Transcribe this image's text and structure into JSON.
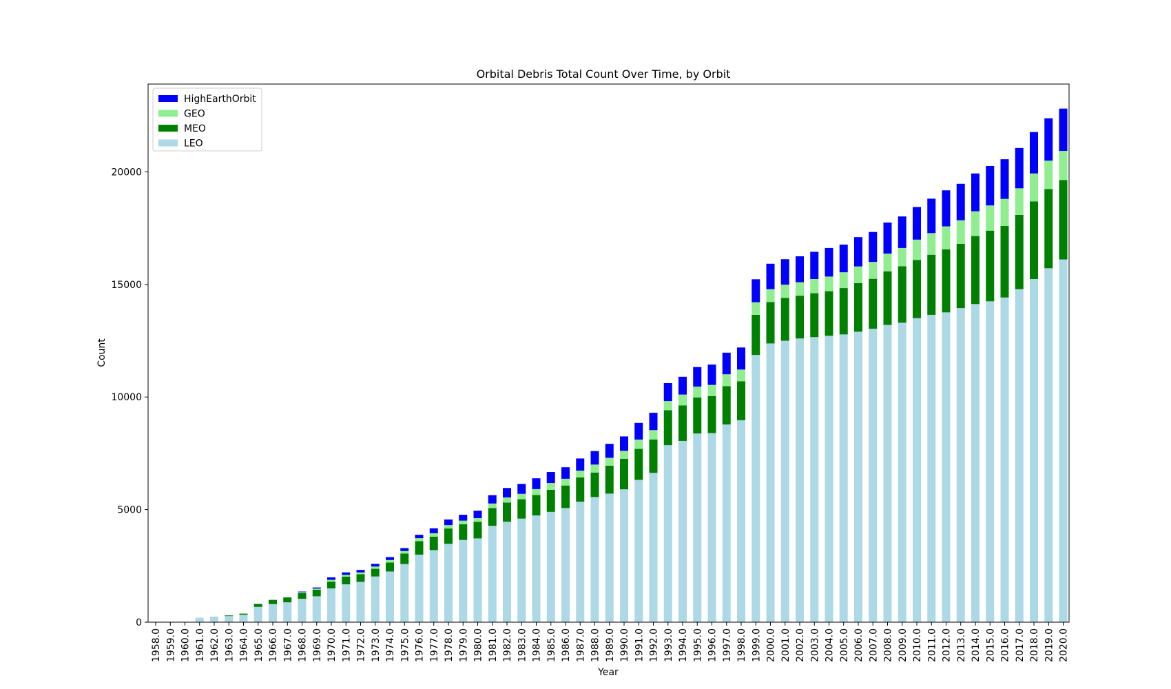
{
  "chart_data": {
    "type": "bar",
    "stacked": true,
    "title": "Orbital Debris Total Count Over Time, by Orbit",
    "xlabel": "Year",
    "ylabel": "Count",
    "ylim": [
      0,
      23900
    ],
    "yticks": [
      0,
      5000,
      10000,
      15000,
      20000
    ],
    "legend_position": "top-left",
    "grid": false,
    "categories": [
      "1958.0",
      "1959.0",
      "1960.0",
      "1961.0",
      "1962.0",
      "1963.0",
      "1964.0",
      "1965.0",
      "1966.0",
      "1967.0",
      "1968.0",
      "1969.0",
      "1970.0",
      "1971.0",
      "1972.0",
      "1973.0",
      "1974.0",
      "1975.0",
      "1976.0",
      "1977.0",
      "1978.0",
      "1979.0",
      "1980.0",
      "1981.0",
      "1982.0",
      "1983.0",
      "1984.0",
      "1985.0",
      "1986.0",
      "1987.0",
      "1988.0",
      "1989.0",
      "1990.0",
      "1991.0",
      "1992.0",
      "1993.0",
      "1994.0",
      "1995.0",
      "1996.0",
      "1997.0",
      "1998.0",
      "1999.0",
      "2000.0",
      "2001.0",
      "2002.0",
      "2003.0",
      "2004.0",
      "2005.0",
      "2006.0",
      "2007.0",
      "2008.0",
      "2009.0",
      "2010.0",
      "2011.0",
      "2012.0",
      "2013.0",
      "2014.0",
      "2015.0",
      "2016.0",
      "2017.0",
      "2018.0",
      "2019.0",
      "2020.0"
    ],
    "series": [
      {
        "name": "LEO",
        "color": "#add8e6",
        "values": [
          2,
          5,
          10,
          200,
          220,
          270,
          330,
          680,
          800,
          880,
          1040,
          1150,
          1500,
          1680,
          1790,
          2030,
          2250,
          2580,
          3000,
          3200,
          3480,
          3650,
          3720,
          4280,
          4460,
          4600,
          4740,
          4900,
          5070,
          5350,
          5560,
          5710,
          5900,
          6320,
          6630,
          7860,
          8050,
          8380,
          8400,
          8780,
          8970,
          11870,
          12380,
          12500,
          12600,
          12660,
          12720,
          12780,
          12900,
          13030,
          13200,
          13300,
          13500,
          13650,
          13760,
          13950,
          14130,
          14250,
          14420,
          14790,
          15240,
          15720,
          16110
        ]
      },
      {
        "name": "MEO",
        "color": "#008000",
        "values": [
          0,
          0,
          0,
          0,
          10,
          30,
          50,
          130,
          190,
          220,
          250,
          290,
          300,
          340,
          340,
          340,
          400,
          470,
          600,
          600,
          680,
          700,
          740,
          790,
          850,
          860,
          910,
          980,
          1000,
          1080,
          1080,
          1240,
          1360,
          1380,
          1480,
          1550,
          1580,
          1600,
          1640,
          1700,
          1730,
          1780,
          1840,
          1900,
          1900,
          1950,
          1980,
          2060,
          2160,
          2220,
          2380,
          2510,
          2590,
          2670,
          2800,
          2850,
          3020,
          3140,
          3180,
          3300,
          3450,
          3520,
          3530
        ]
      },
      {
        "name": "GEO",
        "color": "#90ee90",
        "values": [
          0,
          0,
          0,
          0,
          0,
          0,
          0,
          0,
          0,
          0,
          40,
          50,
          80,
          80,
          80,
          100,
          110,
          110,
          130,
          150,
          150,
          160,
          160,
          200,
          230,
          240,
          260,
          300,
          300,
          300,
          360,
          350,
          350,
          410,
          420,
          410,
          480,
          480,
          500,
          530,
          520,
          560,
          570,
          590,
          600,
          630,
          650,
          700,
          740,
          750,
          790,
          810,
          900,
          960,
          1020,
          1050,
          1100,
          1120,
          1200,
          1180,
          1240,
          1260,
          1290
        ]
      },
      {
        "name": "HighEarthOrbit",
        "color": "#0000ff",
        "values": [
          0,
          0,
          0,
          0,
          0,
          0,
          0,
          0,
          0,
          0,
          30,
          50,
          110,
          110,
          110,
          120,
          130,
          130,
          150,
          220,
          250,
          260,
          330,
          370,
          420,
          440,
          480,
          490,
          510,
          540,
          600,
          620,
          640,
          740,
          770,
          800,
          790,
          870,
          900,
          960,
          980,
          1020,
          1130,
          1130,
          1150,
          1210,
          1270,
          1230,
          1300,
          1330,
          1380,
          1400,
          1450,
          1530,
          1600,
          1620,
          1680,
          1750,
          1760,
          1790,
          1840,
          1880,
          1880
        ]
      }
    ],
    "legend_order": [
      "HighEarthOrbit",
      "GEO",
      "MEO",
      "LEO"
    ]
  }
}
